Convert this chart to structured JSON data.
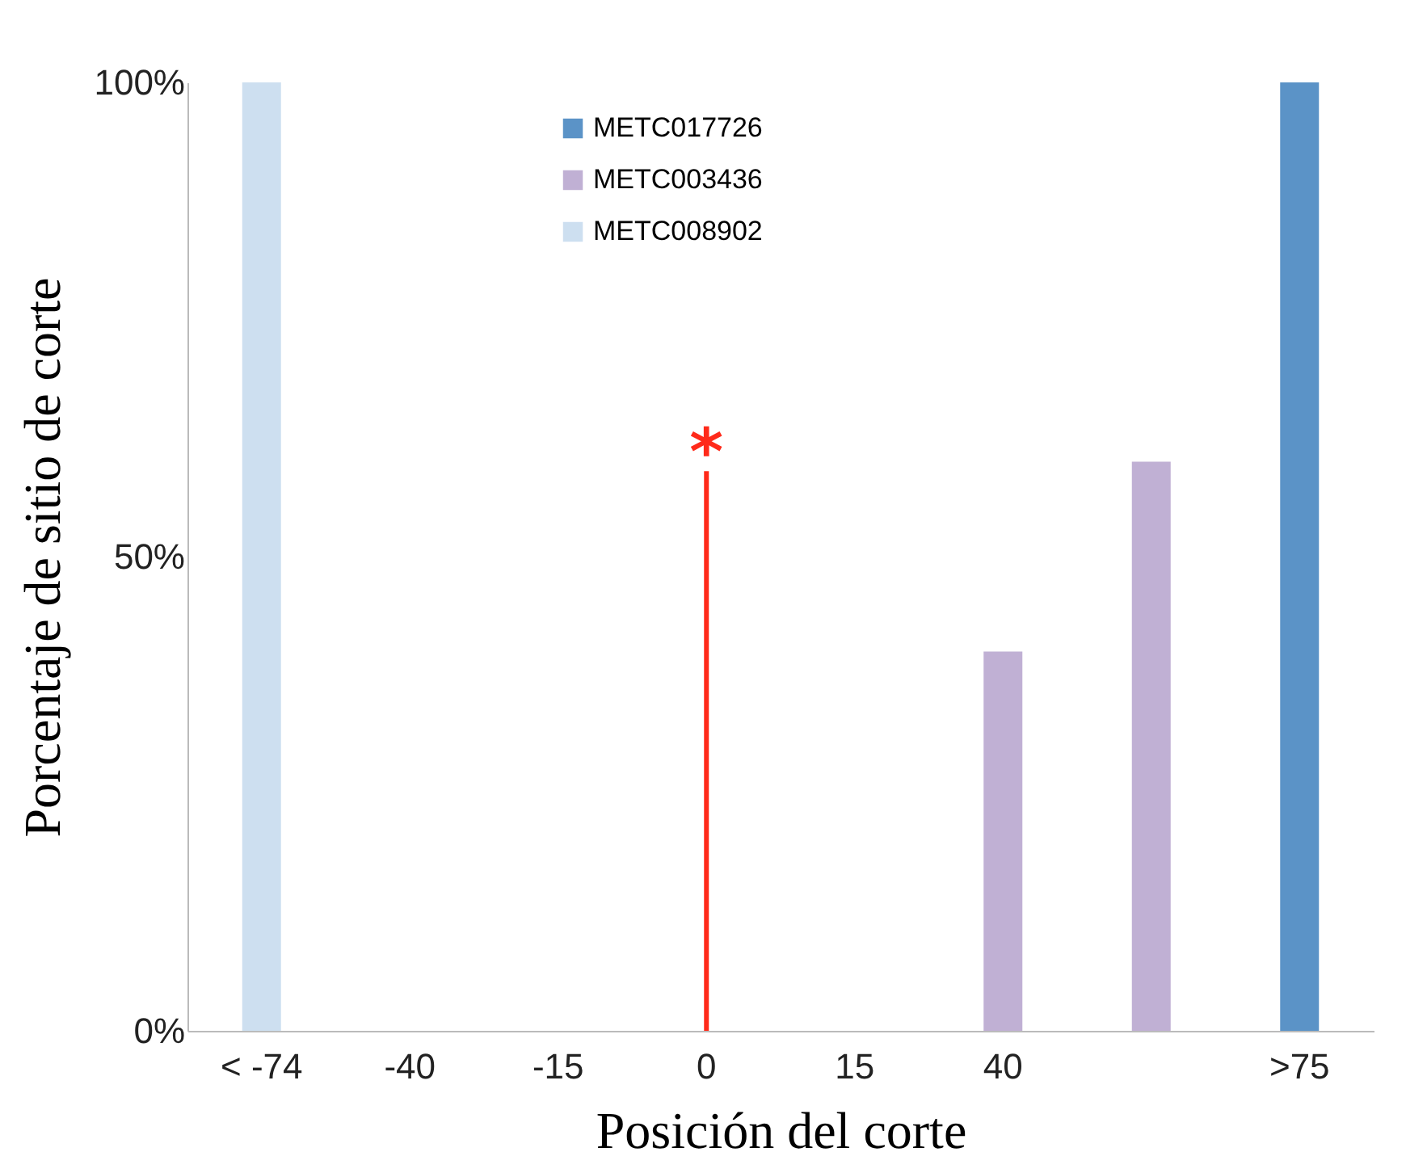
{
  "chart_data": {
    "type": "bar",
    "xlabel": "Posición del corte",
    "ylabel": "Porcentaje de sitio de corte",
    "categories": [
      "< -74",
      "-40",
      "-15",
      "0",
      "15",
      "40",
      null,
      ">75"
    ],
    "series": [
      {
        "name": "METC017726",
        "color": "#5b93c7",
        "values": [
          null,
          null,
          null,
          null,
          null,
          null,
          null,
          100
        ]
      },
      {
        "name": "METC003436",
        "color": "#c0b0d4",
        "values": [
          null,
          null,
          null,
          null,
          null,
          40,
          60,
          null
        ]
      },
      {
        "name": "METC008902",
        "color": "#cddff0",
        "values": [
          100,
          null,
          null,
          null,
          null,
          null,
          null,
          null
        ]
      },
      {
        "color": "#ff2a1a",
        "values": [
          null,
          null,
          null,
          59,
          null,
          null,
          null,
          null
        ]
      }
    ],
    "annotations": [
      {
        "text": "*",
        "x": "0",
        "y": 59
      }
    ],
    "ylim": [
      0,
      100
    ],
    "yticks": [
      {
        "value": 0,
        "label": "0%"
      },
      {
        "value": 50,
        "label": "50%"
      },
      {
        "value": 100,
        "label": "100%"
      }
    ],
    "grid": false,
    "legend": "top"
  }
}
